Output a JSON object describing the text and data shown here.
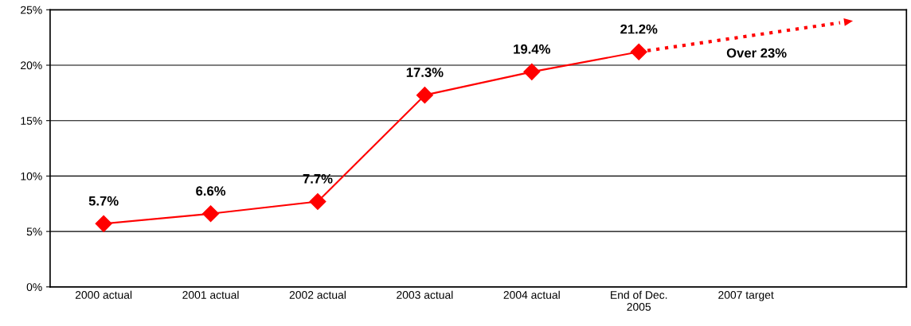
{
  "chart_data": {
    "type": "line",
    "categories": [
      "2000 actual",
      "2001 actual",
      "2002 actual",
      "2003 actual",
      "2004 actual",
      "End of Dec.\n2005",
      "2007 target",
      null
    ],
    "series": [
      {
        "color": "#ff0000",
        "marker": "diamond",
        "line_style": "solid",
        "values": [
          5.7,
          6.6,
          7.7,
          17.3,
          19.4,
          21.2,
          null,
          null
        ],
        "value_labels": [
          "5.7%",
          "6.6%",
          "7.7%",
          "17.3%",
          "19.4%",
          "21.2%",
          null,
          null
        ]
      },
      {
        "color": "#ff0000",
        "line_style": "dotted",
        "values": [
          null,
          null,
          null,
          null,
          null,
          21.2,
          null,
          24.0
        ]
      }
    ],
    "annotations": [
      "Over 23%"
    ],
    "ylim": [
      0,
      25
    ],
    "yticks": [
      {
        "value": 0,
        "label": "0%"
      },
      {
        "value": 5,
        "label": "5%"
      },
      {
        "value": 10,
        "label": "10%"
      },
      {
        "value": 15,
        "label": "15%"
      },
      {
        "value": 20,
        "label": "20%"
      },
      {
        "value": 25,
        "label": "25%"
      }
    ],
    "grid": "y",
    "legend": false
  }
}
